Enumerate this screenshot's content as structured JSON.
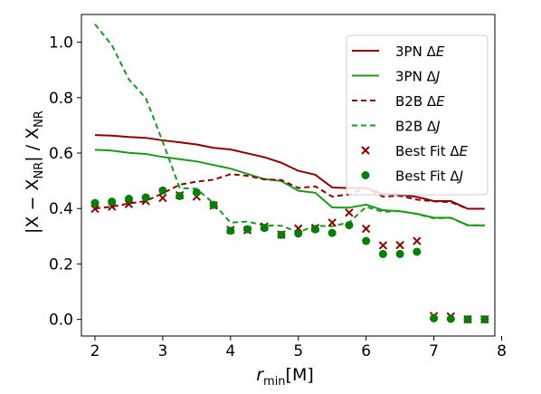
{
  "chart_data": {
    "type": "line",
    "xlabel": {
      "main": "r",
      "sub": "min",
      "tail": "[M]"
    },
    "ylabel": {
      "p1": "|X − X",
      "s1": "NR",
      "p2": "| / X",
      "s2": "NR"
    },
    "xlim": [
      1.8,
      7.9
    ],
    "ylim": [
      -0.06,
      1.1
    ],
    "xticks": [
      2,
      3,
      4,
      5,
      6,
      7,
      8
    ],
    "yticks": [
      0.0,
      0.2,
      0.4,
      0.6,
      0.8,
      1.0
    ],
    "xtick_labels": [
      "2",
      "3",
      "4",
      "5",
      "6",
      "7",
      "8"
    ],
    "ytick_labels": [
      "0.0",
      "0.2",
      "0.4",
      "0.6",
      "0.8",
      "1.0"
    ],
    "grid": false,
    "legend_position": "upper-right",
    "series": [
      {
        "name": "3PN ΔE",
        "label_main": "3PN Δ",
        "label_var": "E",
        "kind": "line",
        "dash": "solid",
        "color": "#8b0000",
        "x": [
          2.0,
          2.25,
          2.5,
          2.75,
          3.0,
          3.25,
          3.5,
          3.75,
          4.0,
          4.25,
          4.5,
          4.75,
          5.0,
          5.25,
          5.5,
          5.75,
          6.0,
          6.25,
          6.5,
          6.75,
          7.0,
          7.25,
          7.5,
          7.75
        ],
        "y": [
          0.665,
          0.663,
          0.658,
          0.655,
          0.646,
          0.639,
          0.631,
          0.619,
          0.613,
          0.599,
          0.585,
          0.565,
          0.536,
          0.522,
          0.476,
          0.474,
          0.474,
          0.452,
          0.45,
          0.442,
          0.427,
          0.427,
          0.399,
          0.399
        ]
      },
      {
        "name": "3PN ΔJ",
        "label_main": "3PN Δ",
        "label_var": "J",
        "kind": "line",
        "dash": "solid",
        "color": "#1a9a1a",
        "x": [
          2.0,
          2.25,
          2.5,
          2.75,
          3.0,
          3.25,
          3.5,
          3.75,
          4.0,
          4.25,
          4.5,
          4.75,
          5.0,
          5.25,
          5.5,
          5.75,
          6.0,
          6.25,
          6.5,
          6.75,
          7.0,
          7.25,
          7.5,
          7.75
        ],
        "y": [
          0.612,
          0.609,
          0.601,
          0.597,
          0.586,
          0.578,
          0.57,
          0.557,
          0.544,
          0.525,
          0.506,
          0.499,
          0.464,
          0.457,
          0.404,
          0.403,
          0.414,
          0.394,
          0.39,
          0.381,
          0.367,
          0.367,
          0.34,
          0.339
        ]
      },
      {
        "name": "B2B ΔE",
        "label_main": "B2B Δ",
        "label_var": "E",
        "kind": "line",
        "dash": "dashed",
        "color": "#8b0000",
        "x": [
          2.0,
          2.25,
          2.5,
          2.75,
          3.0,
          3.25,
          3.5,
          3.75,
          4.0,
          4.25,
          4.5,
          4.75,
          5.0,
          5.25,
          5.5,
          5.75,
          6.0,
          6.25,
          6.5,
          6.75,
          7.0,
          7.25,
          7.5,
          7.75
        ],
        "y": [
          0.4,
          0.407,
          0.418,
          0.427,
          0.455,
          0.486,
          0.497,
          0.504,
          0.524,
          0.518,
          0.505,
          0.503,
          0.474,
          0.48,
          0.443,
          0.451,
          0.474,
          0.443,
          0.446,
          0.432,
          0.426,
          0.423,
          0.399,
          0.399
        ]
      },
      {
        "name": "B2B ΔJ",
        "label_main": "B2B Δ",
        "label_var": "J",
        "kind": "line",
        "dash": "dashed",
        "color": "#1a9a1a",
        "x": [
          2.0,
          2.25,
          2.5,
          2.75,
          3.0,
          3.25,
          3.5,
          3.75,
          4.0,
          4.25,
          4.5,
          4.75,
          5.0,
          5.25,
          5.5,
          5.75,
          6.0,
          6.25,
          6.5,
          6.75,
          7.0,
          7.25,
          7.5,
          7.75
        ],
        "y": [
          1.065,
          0.989,
          0.866,
          0.798,
          0.641,
          0.474,
          0.471,
          0.419,
          0.349,
          0.353,
          0.339,
          0.338,
          0.314,
          0.338,
          0.336,
          0.35,
          0.406,
          0.388,
          0.391,
          0.38,
          0.365,
          0.366,
          0.339,
          0.339
        ]
      },
      {
        "name": "Best Fit ΔE",
        "label_main": "Best Fit Δ",
        "label_var": "E",
        "kind": "scatter",
        "marker": "x",
        "color": "#8b0000",
        "x": [
          2.0,
          2.25,
          2.5,
          2.75,
          3.0,
          3.25,
          3.5,
          3.75,
          4.0,
          4.25,
          4.5,
          4.75,
          5.0,
          5.25,
          5.5,
          5.75,
          6.0,
          6.25,
          6.5,
          6.75,
          7.0,
          7.25,
          7.5,
          7.75
        ],
        "y": [
          0.399,
          0.407,
          0.416,
          0.427,
          0.438,
          0.448,
          0.443,
          0.411,
          0.323,
          0.322,
          0.335,
          0.306,
          0.328,
          0.33,
          0.349,
          0.385,
          0.327,
          0.267,
          0.268,
          0.283,
          0.012,
          0.011,
          0.0,
          0.0
        ]
      },
      {
        "name": "Best Fit ΔJ",
        "label_main": "Best Fit Δ",
        "label_var": "J",
        "kind": "scatter",
        "marker": "circle",
        "color": "#008000",
        "x": [
          2.0,
          2.25,
          2.5,
          2.75,
          3.0,
          3.25,
          3.5,
          3.75,
          4.0,
          4.25,
          4.5,
          4.75,
          5.0,
          5.25,
          5.5,
          5.75,
          6.0,
          6.25,
          6.5,
          6.75,
          7.0,
          7.25,
          7.5,
          7.75
        ],
        "y": [
          0.42,
          0.425,
          0.435,
          0.44,
          0.465,
          0.445,
          0.458,
          0.413,
          0.32,
          0.325,
          0.33,
          0.305,
          0.31,
          0.325,
          0.312,
          0.34,
          0.283,
          0.236,
          0.236,
          0.244,
          0.004,
          0.002,
          0.0,
          0.0
        ]
      }
    ]
  }
}
